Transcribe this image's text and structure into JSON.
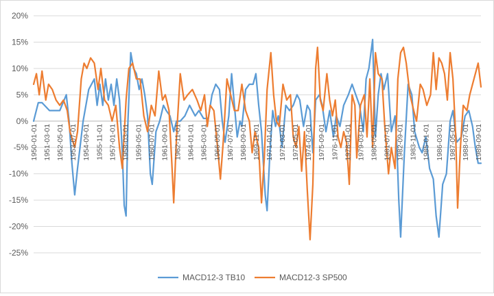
{
  "chart_data": {
    "type": "line",
    "ylim": [
      -0.25,
      0.2
    ],
    "yticks": [
      -0.25,
      -0.2,
      -0.15,
      -0.1,
      -0.05,
      0,
      0.05,
      0.1,
      0.15,
      0.2
    ],
    "ytick_labels": [
      "-25%",
      "-20%",
      "-15%",
      "-10%",
      "-5%",
      "0%",
      "5%",
      "10%",
      "15%",
      "20%"
    ],
    "x_start": "1950-01",
    "x_end": "1989-12",
    "x_tick_labels": [
      "1950-01-01",
      "1951-03-01",
      "1952-05-01",
      "1953-07-01",
      "1954-09-01",
      "1955-11-01",
      "1957-01-01",
      "1958-03-01",
      "1959-05-01",
      "1960-07-01",
      "1961-09-01",
      "1962-11-01",
      "1964-01-01",
      "1965-03-01",
      "1966-05-01",
      "1967-07-01",
      "1968-09-01",
      "1969-11-01",
      "1971-01-01",
      "1972-03-01",
      "1973-05-01",
      "1974-07-01",
      "1975-09-01",
      "1976-11-01",
      "1978-01-01",
      "1979-03-01",
      "1980-05-01",
      "1981-07-01",
      "1982-09-01",
      "1983-11-01",
      "1985-01-01",
      "1986-03-01",
      "1987-05-01",
      "1988-07-01",
      "1989-09-01"
    ],
    "grid": true,
    "legend": "bottom",
    "series": [
      {
        "name": "MACD12-3 TB10",
        "color": "#5b9bd5",
        "points": [
          [
            "1950-01",
            0
          ],
          [
            "1950-06",
            0.035
          ],
          [
            "1950-10",
            0.035
          ],
          [
            "1951-06",
            0.02
          ],
          [
            "1952-05",
            0.02
          ],
          [
            "1952-12",
            0.05
          ],
          [
            "1953-03",
            0.0
          ],
          [
            "1953-06",
            -0.08
          ],
          [
            "1953-09",
            -0.14
          ],
          [
            "1953-12",
            -0.09
          ],
          [
            "1954-06",
            0.0
          ],
          [
            "1954-12",
            0.06
          ],
          [
            "1955-06",
            0.08
          ],
          [
            "1955-09",
            0.03
          ],
          [
            "1955-12",
            0.07
          ],
          [
            "1956-03",
            0.03
          ],
          [
            "1956-06",
            0.08
          ],
          [
            "1956-09",
            0.04
          ],
          [
            "1956-12",
            0.07
          ],
          [
            "1957-03",
            0.03
          ],
          [
            "1957-06",
            0.08
          ],
          [
            "1957-09",
            0.04
          ],
          [
            "1957-12",
            -0.06
          ],
          [
            "1958-02",
            -0.16
          ],
          [
            "1958-04",
            -0.18
          ],
          [
            "1958-06",
            0.0
          ],
          [
            "1958-09",
            0.13
          ],
          [
            "1958-12",
            0.1
          ],
          [
            "1959-03",
            0.09
          ],
          [
            "1959-06",
            0.06
          ],
          [
            "1959-09",
            0.08
          ],
          [
            "1959-12",
            0.05
          ],
          [
            "1960-03",
            0.01
          ],
          [
            "1960-06",
            -0.1
          ],
          [
            "1960-08",
            -0.12
          ],
          [
            "1960-12",
            -0.02
          ],
          [
            "1961-04",
            0.0
          ],
          [
            "1961-08",
            0.03
          ],
          [
            "1961-11",
            0.02
          ],
          [
            "1962-03",
            0.01
          ],
          [
            "1962-07",
            -0.02
          ],
          [
            "1962-10",
            0.0
          ],
          [
            "1963-02",
            0.0
          ],
          [
            "1963-07",
            0.01
          ],
          [
            "1963-12",
            0.03
          ],
          [
            "1964-06",
            0.01
          ],
          [
            "1964-10",
            0.02
          ],
          [
            "1965-03",
            0.005
          ],
          [
            "1965-08",
            0.005
          ],
          [
            "1965-12",
            0.05
          ],
          [
            "1966-04",
            0.07
          ],
          [
            "1966-08",
            0.06
          ],
          [
            "1966-11",
            0.0
          ],
          [
            "1967-02",
            -0.04
          ],
          [
            "1967-06",
            0.01
          ],
          [
            "1967-09",
            0.09
          ],
          [
            "1967-11",
            0.05
          ],
          [
            "1968-03",
            -0.03
          ],
          [
            "1968-06",
            0.0
          ],
          [
            "1968-08",
            -0.01
          ],
          [
            "1968-12",
            0.06
          ],
          [
            "1969-04",
            0.07
          ],
          [
            "1969-08",
            0.07
          ],
          [
            "1969-11",
            0.09
          ],
          [
            "1970-02",
            0.03
          ],
          [
            "1970-05",
            -0.02
          ],
          [
            "1970-09",
            -0.14
          ],
          [
            "1970-11",
            -0.17
          ],
          [
            "1971-02",
            -0.06
          ],
          [
            "1971-05",
            0.02
          ],
          [
            "1971-08",
            -0.01
          ],
          [
            "1971-11",
            0.01
          ],
          [
            "1972-03",
            -0.05
          ],
          [
            "1972-07",
            0.03
          ],
          [
            "1972-11",
            0.02
          ],
          [
            "1973-03",
            0.03
          ],
          [
            "1973-07",
            0.05
          ],
          [
            "1973-10",
            0.04
          ],
          [
            "1974-02",
            -0.01
          ],
          [
            "1974-06",
            0.03
          ],
          [
            "1974-09",
            0.02
          ],
          [
            "1974-12",
            -0.06
          ],
          [
            "1975-03",
            0.04
          ],
          [
            "1975-07",
            0.05
          ],
          [
            "1975-10",
            0.03
          ],
          [
            "1976-02",
            -0.02
          ],
          [
            "1976-06",
            0.02
          ],
          [
            "1976-10",
            -0.03
          ],
          [
            "1977-01",
            0.01
          ],
          [
            "1977-05",
            -0.01
          ],
          [
            "1977-09",
            0.03
          ],
          [
            "1978-02",
            0.05
          ],
          [
            "1978-06",
            0.07
          ],
          [
            "1978-10",
            0.05
          ],
          [
            "1979-02",
            0.03
          ],
          [
            "1979-06",
            -0.02
          ],
          [
            "1979-09",
            0.08
          ],
          [
            "1979-12",
            0.1
          ],
          [
            "1980-04",
            0.155
          ],
          [
            "1980-07",
            -0.03
          ],
          [
            "1980-10",
            0.05
          ],
          [
            "1981-01",
            0.09
          ],
          [
            "1981-04",
            0.06
          ],
          [
            "1981-08",
            0.09
          ],
          [
            "1981-12",
            -0.02
          ],
          [
            "1982-04",
            0.01
          ],
          [
            "1982-06",
            -0.05
          ],
          [
            "1982-08",
            -0.15
          ],
          [
            "1982-10",
            -0.22
          ],
          [
            "1983-02",
            -0.06
          ],
          [
            "1983-06",
            0.07
          ],
          [
            "1983-10",
            0.05
          ],
          [
            "1984-01",
            -0.02
          ],
          [
            "1984-06",
            -0.05
          ],
          [
            "1984-09",
            -0.06
          ],
          [
            "1985-01",
            -0.03
          ],
          [
            "1985-05",
            -0.09
          ],
          [
            "1985-09",
            -0.11
          ],
          [
            "1985-12",
            -0.18
          ],
          [
            "1986-03",
            -0.22
          ],
          [
            "1986-07",
            -0.12
          ],
          [
            "1986-11",
            -0.1
          ],
          [
            "1987-03",
            0.0
          ],
          [
            "1987-06",
            0.02
          ],
          [
            "1987-10",
            -0.04
          ],
          [
            "1988-03",
            -0.03
          ],
          [
            "1988-07",
            0.01
          ],
          [
            "1988-11",
            0.02
          ],
          [
            "1989-03",
            -0.01
          ],
          [
            "1989-06",
            -0.05
          ],
          [
            "1989-09",
            -0.08
          ],
          [
            "1989-12",
            -0.08
          ]
        ]
      },
      {
        "name": "MACD12-3 SP500",
        "color": "#ed7d31",
        "points": [
          [
            "1950-01",
            0.07
          ],
          [
            "1950-04",
            0.09
          ],
          [
            "1950-07",
            0.05
          ],
          [
            "1950-10",
            0.095
          ],
          [
            "1951-02",
            0.04
          ],
          [
            "1951-05",
            0.07
          ],
          [
            "1951-09",
            0.06
          ],
          [
            "1952-01",
            0.04
          ],
          [
            "1952-05",
            0.03
          ],
          [
            "1952-09",
            0.04
          ],
          [
            "1953-01",
            0.02
          ],
          [
            "1953-04",
            -0.02
          ],
          [
            "1953-09",
            -0.05
          ],
          [
            "1953-12",
            -0.02
          ],
          [
            "1954-04",
            0.08
          ],
          [
            "1954-07",
            0.11
          ],
          [
            "1954-10",
            0.1
          ],
          [
            "1955-02",
            0.12
          ],
          [
            "1955-06",
            0.11
          ],
          [
            "1955-10",
            0.06
          ],
          [
            "1956-01",
            0.1
          ],
          [
            "1956-05",
            0.04
          ],
          [
            "1956-09",
            0.03
          ],
          [
            "1957-01",
            0.0
          ],
          [
            "1957-05",
            0.03
          ],
          [
            "1957-09",
            -0.05
          ],
          [
            "1957-12",
            -0.09
          ],
          [
            "1958-04",
            0.04
          ],
          [
            "1958-07",
            0.1
          ],
          [
            "1958-11",
            0.11
          ],
          [
            "1959-03",
            0.08
          ],
          [
            "1959-07",
            0.08
          ],
          [
            "1959-11",
            0.01
          ],
          [
            "1960-03",
            -0.02
          ],
          [
            "1960-07",
            0.03
          ],
          [
            "1960-11",
            0.01
          ],
          [
            "1961-03",
            0.095
          ],
          [
            "1961-07",
            0.04
          ],
          [
            "1961-10",
            0.05
          ],
          [
            "1962-02",
            0.02
          ],
          [
            "1962-05",
            -0.08
          ],
          [
            "1962-07",
            -0.155
          ],
          [
            "1962-10",
            -0.03
          ],
          [
            "1963-02",
            0.09
          ],
          [
            "1963-06",
            0.04
          ],
          [
            "1963-10",
            0.05
          ],
          [
            "1964-03",
            0.06
          ],
          [
            "1964-08",
            0.04
          ],
          [
            "1964-12",
            0.02
          ],
          [
            "1965-04",
            0.05
          ],
          [
            "1965-07",
            -0.01
          ],
          [
            "1965-10",
            0.03
          ],
          [
            "1966-02",
            0.02
          ],
          [
            "1966-06",
            -0.05
          ],
          [
            "1966-09",
            -0.11
          ],
          [
            "1966-12",
            -0.04
          ],
          [
            "1967-04",
            0.08
          ],
          [
            "1967-08",
            0.05
          ],
          [
            "1967-12",
            0.02
          ],
          [
            "1968-04",
            0.02
          ],
          [
            "1968-08",
            0.07
          ],
          [
            "1968-12",
            0.02
          ],
          [
            "1969-04",
            0.0
          ],
          [
            "1969-07",
            -0.06
          ],
          [
            "1969-10",
            -0.02
          ],
          [
            "1970-02",
            -0.05
          ],
          [
            "1970-05",
            -0.155
          ],
          [
            "1970-08",
            -0.07
          ],
          [
            "1970-11",
            0.06
          ],
          [
            "1971-03",
            0.13
          ],
          [
            "1971-06",
            0.05
          ],
          [
            "1971-09",
            0.0
          ],
          [
            "1971-12",
            -0.01
          ],
          [
            "1972-04",
            0.07
          ],
          [
            "1972-08",
            0.04
          ],
          [
            "1972-12",
            0.05
          ],
          [
            "1973-03",
            -0.03
          ],
          [
            "1973-06",
            -0.05
          ],
          [
            "1973-09",
            -0.01
          ],
          [
            "1973-12",
            -0.095
          ],
          [
            "1974-03",
            -0.02
          ],
          [
            "1974-06",
            -0.13
          ],
          [
            "1974-09",
            -0.225
          ],
          [
            "1974-12",
            -0.12
          ],
          [
            "1975-03",
            0.1
          ],
          [
            "1975-05",
            0.14
          ],
          [
            "1975-08",
            0.04
          ],
          [
            "1975-11",
            0.02
          ],
          [
            "1976-03",
            0.09
          ],
          [
            "1976-06",
            0.04
          ],
          [
            "1976-09",
            0.01
          ],
          [
            "1976-12",
            0.04
          ],
          [
            "1977-03",
            -0.03
          ],
          [
            "1977-06",
            -0.05
          ],
          [
            "1977-09",
            -0.02
          ],
          [
            "1977-12",
            -0.04
          ],
          [
            "1978-03",
            -0.12
          ],
          [
            "1978-06",
            0.05
          ],
          [
            "1978-09",
            0.03
          ],
          [
            "1978-11",
            -0.07
          ],
          [
            "1979-03",
            0.03
          ],
          [
            "1979-07",
            0.05
          ],
          [
            "1979-10",
            -0.03
          ],
          [
            "1980-01",
            0.08
          ],
          [
            "1980-04",
            -0.05
          ],
          [
            "1980-07",
            0.13
          ],
          [
            "1980-10",
            0.09
          ],
          [
            "1981-02",
            0.08
          ],
          [
            "1981-05",
            -0.01
          ],
          [
            "1981-09",
            -0.1
          ],
          [
            "1981-12",
            -0.05
          ],
          [
            "1982-04",
            -0.09
          ],
          [
            "1982-07",
            0.08
          ],
          [
            "1982-10",
            0.13
          ],
          [
            "1983-01",
            0.14
          ],
          [
            "1983-04",
            0.11
          ],
          [
            "1983-08",
            0.05
          ],
          [
            "1983-12",
            0.02
          ],
          [
            "1984-03",
            0.0
          ],
          [
            "1984-07",
            0.07
          ],
          [
            "1984-10",
            0.06
          ],
          [
            "1985-02",
            0.03
          ],
          [
            "1985-06",
            0.05
          ],
          [
            "1985-09",
            0.13
          ],
          [
            "1985-12",
            0.06
          ],
          [
            "1986-03",
            0.12
          ],
          [
            "1986-06",
            0.11
          ],
          [
            "1986-09",
            0.09
          ],
          [
            "1986-12",
            0.04
          ],
          [
            "1987-03",
            0.13
          ],
          [
            "1987-06",
            0.08
          ],
          [
            "1987-09",
            -0.03
          ],
          [
            "1987-11",
            -0.165
          ],
          [
            "1988-02",
            -0.05
          ],
          [
            "1988-05",
            0.03
          ],
          [
            "1988-09",
            0.02
          ],
          [
            "1988-12",
            0.05
          ],
          [
            "1989-03",
            0.07
          ],
          [
            "1989-06",
            0.09
          ],
          [
            "1989-09",
            0.11
          ],
          [
            "1989-12",
            0.065
          ]
        ]
      }
    ]
  }
}
